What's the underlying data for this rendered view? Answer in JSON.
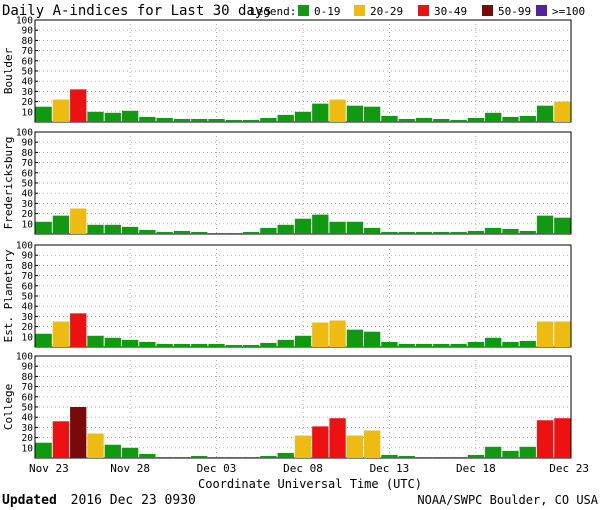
{
  "header": {
    "title": "Daily A-indices for Last 30 days",
    "legend_label": "Legend:",
    "legend": [
      {
        "label": "0-19",
        "color": "#119911"
      },
      {
        "label": "20-29",
        "color": "#EEBB11"
      },
      {
        "label": "30-49",
        "color": "#EE1111"
      },
      {
        "label": "50-99",
        "color": "#7A0A0A"
      },
      {
        "label": ">=100",
        "color": "#55229A"
      }
    ]
  },
  "footer": {
    "updated_bold": "Updated",
    "updated_rest": "2016 Dec 23 0930",
    "source": "NOAA/SWPC Boulder, CO USA"
  },
  "chart_data": {
    "type": "bar",
    "xlabel": "Coordinate Universal Time (UTC)",
    "x_tick_labels": [
      "Nov 23",
      "Nov 28",
      "Dec 03",
      "Dec 08",
      "Dec 13",
      "Dec 18",
      "Dec 23"
    ],
    "y_ticks": [
      "10",
      "20",
      "30",
      "40",
      "50",
      "60",
      "70",
      "80",
      "90",
      "100"
    ],
    "ylim": [
      0,
      100
    ],
    "grid": true,
    "color_bins": [
      {
        "min": 0,
        "max": 19,
        "color": "#119911"
      },
      {
        "min": 20,
        "max": 29,
        "color": "#EEBB11"
      },
      {
        "min": 30,
        "max": 49,
        "color": "#EE1111"
      },
      {
        "min": 50,
        "max": 99,
        "color": "#7A0A0A"
      },
      {
        "min": 100,
        "max": 1000,
        "color": "#55229A"
      }
    ],
    "panels": [
      {
        "ylabel": "Boulder",
        "values": [
          15,
          22,
          32,
          10,
          9,
          11,
          5,
          4,
          3,
          3,
          3,
          2,
          2,
          4,
          7,
          10,
          18,
          22,
          16,
          15,
          6,
          3,
          4,
          3,
          2,
          4,
          9,
          5,
          6,
          16,
          20
        ]
      },
      {
        "ylabel": "Fredericksburg",
        "values": [
          12,
          18,
          25,
          9,
          9,
          7,
          4,
          2,
          3,
          2,
          1,
          1,
          2,
          6,
          9,
          15,
          19,
          12,
          12,
          6,
          2,
          2,
          2,
          2,
          2,
          3,
          6,
          5,
          3,
          18,
          16
        ]
      },
      {
        "ylabel": "Est. Planetary",
        "values": [
          13,
          25,
          33,
          11,
          9,
          7,
          5,
          3,
          3,
          3,
          3,
          2,
          2,
          4,
          7,
          11,
          24,
          26,
          17,
          15,
          5,
          3,
          3,
          3,
          3,
          5,
          9,
          5,
          6,
          25,
          25
        ]
      },
      {
        "ylabel": "College",
        "values": [
          15,
          36,
          50,
          24,
          13,
          10,
          4,
          1,
          1,
          2,
          1,
          1,
          1,
          2,
          5,
          22,
          31,
          39,
          22,
          27,
          3,
          2,
          1,
          1,
          1,
          3,
          11,
          7,
          11,
          37,
          39
        ]
      }
    ]
  }
}
